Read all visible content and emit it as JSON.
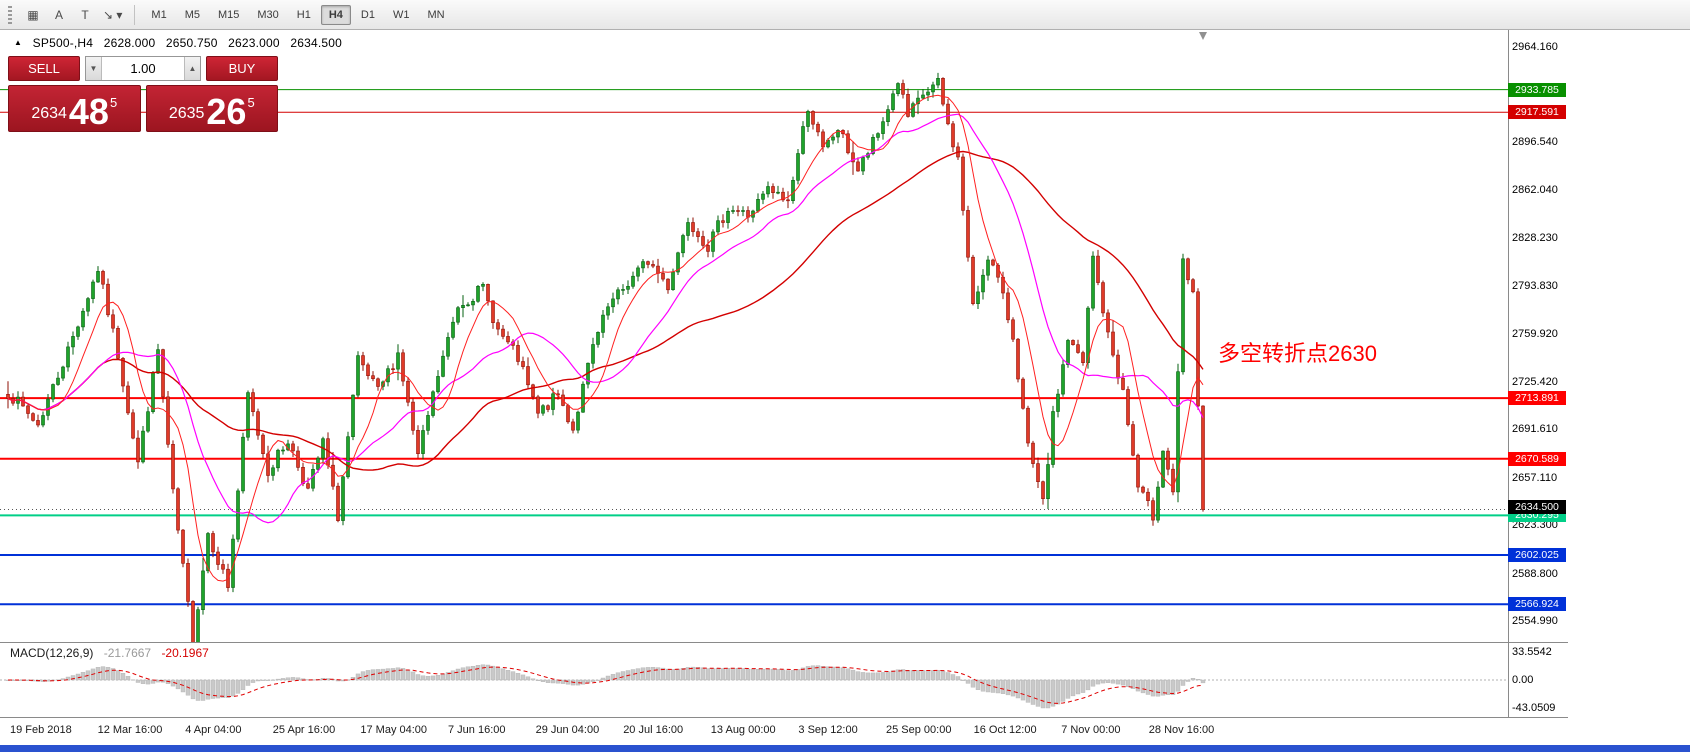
{
  "icons": {
    "chart_marker": "▲",
    "volume_down": "▼",
    "volume_up": "▲"
  },
  "toolbar": {
    "buttons": [
      {
        "name": "grid-icon",
        "glyph": "▦"
      },
      {
        "name": "cursor-a-icon",
        "glyph": "A"
      },
      {
        "name": "text-tool-icon",
        "glyph": "T"
      },
      {
        "name": "arrow-tool-icon",
        "glyph": "↘ ▾"
      }
    ],
    "timeframes": [
      {
        "label": "M1",
        "active": false
      },
      {
        "label": "M5",
        "active": false
      },
      {
        "label": "M15",
        "active": false
      },
      {
        "label": "M30",
        "active": false
      },
      {
        "label": "H1",
        "active": false
      },
      {
        "label": "H4",
        "active": true
      },
      {
        "label": "D1",
        "active": false
      },
      {
        "label": "W1",
        "active": false
      },
      {
        "label": "MN",
        "active": false
      }
    ]
  },
  "chart": {
    "header": {
      "symbol_period": "SP500-,H4",
      "open": "2628.000",
      "high": "2650.750",
      "low": "2623.000",
      "close": "2634.500"
    },
    "trade_panel": {
      "sell_label": "SELL",
      "buy_label": "BUY",
      "volume": "1.00",
      "bid": {
        "prefix": "2634",
        "big": "48",
        "sup": "5"
      },
      "ask": {
        "prefix": "2635",
        "big": "26",
        "sup": "5"
      }
    },
    "annotation": {
      "text": "多空转折点2630",
      "color": "#ff0000"
    },
    "price_axis": {
      "range": {
        "top": 2964.16,
        "bottom": 2554.99
      },
      "ticks": [
        {
          "label": "2964.160",
          "value": 2964.16
        },
        {
          "label": "2896.540",
          "value": 2896.54
        },
        {
          "label": "2862.040",
          "value": 2862.04
        },
        {
          "label": "2828.230",
          "value": 2828.23
        },
        {
          "label": "2793.830",
          "value": 2793.83
        },
        {
          "label": "2759.920",
          "value": 2759.92
        },
        {
          "label": "2725.420",
          "value": 2725.42
        },
        {
          "label": "2691.610",
          "value": 2691.61
        },
        {
          "label": "2657.110",
          "value": 2657.11
        },
        {
          "label": "2623.300",
          "value": 2623.3
        },
        {
          "label": "2588.800",
          "value": 2588.8
        },
        {
          "label": "2554.990",
          "value": 2554.99
        }
      ]
    },
    "levels": [
      {
        "label": "2933.785",
        "value": 2933.785,
        "color": "#089000",
        "width": 1
      },
      {
        "label": "2917.591",
        "value": 2917.591,
        "color": "#d40000",
        "width": 1
      },
      {
        "label": "2713.891",
        "value": 2713.891,
        "color": "#ff0000",
        "width": 2
      },
      {
        "label": "2670.589",
        "value": 2670.589,
        "color": "#ff0000",
        "width": 2
      },
      {
        "label": "2630.295",
        "value": 2630.295,
        "color": "#00cf87",
        "width": 2
      },
      {
        "label": "2602.025",
        "value": 2602.025,
        "color": "#0031d8",
        "width": 2
      },
      {
        "label": "2566.924",
        "value": 2566.924,
        "color": "#0031d8",
        "width": 2
      }
    ],
    "current_price": {
      "label": "2634.500",
      "value": 2634.5,
      "bg": "#000000"
    },
    "time_axis": [
      "19 Feb 2018",
      "12 Mar 16:00",
      "4 Apr 04:00",
      "25 Apr 16:00",
      "17 May 04:00",
      "7 Jun 16:00",
      "29 Jun 04:00",
      "20 Jul 16:00",
      "13 Aug 00:00",
      "3 Sep 12:00",
      "25 Sep 00:00",
      "16 Oct 12:00",
      "7 Nov 00:00",
      "28 Nov 16:00"
    ],
    "colors": {
      "up_fill": "#1fa32b",
      "up_stroke": "#056010",
      "down_fill": "#e03a28",
      "down_stroke": "#8f1005",
      "ma_fast": "#ff2020",
      "ma_mid": "#ff00ff",
      "ma_slow": "#d30000"
    },
    "candles": {
      "count": 240,
      "anchors": [
        [
          0,
          2718
        ],
        [
          6,
          2695
        ],
        [
          12,
          2748
        ],
        [
          18,
          2806
        ],
        [
          22,
          2745
        ],
        [
          26,
          2668
        ],
        [
          30,
          2748
        ],
        [
          33,
          2645
        ],
        [
          36,
          2566
        ],
        [
          37,
          2540
        ],
        [
          40,
          2618
        ],
        [
          44,
          2580
        ],
        [
          48,
          2716
        ],
        [
          52,
          2662
        ],
        [
          56,
          2684
        ],
        [
          60,
          2648
        ],
        [
          63,
          2682
        ],
        [
          66,
          2630
        ],
        [
          70,
          2740
        ],
        [
          74,
          2718
        ],
        [
          78,
          2746
        ],
        [
          82,
          2672
        ],
        [
          86,
          2730
        ],
        [
          90,
          2780
        ],
        [
          95,
          2792
        ],
        [
          98,
          2762
        ],
        [
          102,
          2742
        ],
        [
          106,
          2702
        ],
        [
          110,
          2716
        ],
        [
          113,
          2692
        ],
        [
          117,
          2750
        ],
        [
          120,
          2778
        ],
        [
          124,
          2796
        ],
        [
          128,
          2812
        ],
        [
          132,
          2794
        ],
        [
          136,
          2842
        ],
        [
          140,
          2822
        ],
        [
          144,
          2850
        ],
        [
          148,
          2844
        ],
        [
          152,
          2862
        ],
        [
          156,
          2854
        ],
        [
          160,
          2922
        ],
        [
          163,
          2890
        ],
        [
          166,
          2906
        ],
        [
          170,
          2876
        ],
        [
          174,
          2902
        ],
        [
          178,
          2940
        ],
        [
          180,
          2914
        ],
        [
          183,
          2930
        ],
        [
          186,
          2938
        ],
        [
          188,
          2908
        ],
        [
          190,
          2884
        ],
        [
          193,
          2778
        ],
        [
          196,
          2816
        ],
        [
          198,
          2798
        ],
        [
          201,
          2758
        ],
        [
          204,
          2678
        ],
        [
          207,
          2638
        ],
        [
          209,
          2700
        ],
        [
          212,
          2756
        ],
        [
          215,
          2738
        ],
        [
          217,
          2814
        ],
        [
          220,
          2758
        ],
        [
          223,
          2718
        ],
        [
          226,
          2650
        ],
        [
          229,
          2630
        ],
        [
          231,
          2678
        ],
        [
          233,
          2648
        ],
        [
          235,
          2810
        ],
        [
          237,
          2786
        ],
        [
          239,
          2634.5
        ]
      ]
    }
  },
  "macd": {
    "label": "MACD(12,26,9)",
    "main_value": "-21.7667",
    "signal_value": "-20.1967",
    "params": {
      "fast": 12,
      "slow": 26,
      "signal": 9
    },
    "axis": [
      {
        "label": "33.5542",
        "value": 33.5542
      },
      {
        "label": "0.00",
        "value": 0
      },
      {
        "label": "-43.0509",
        "value": -43.0509
      }
    ],
    "label_color": "#1a1a1a",
    "main_value_color": "#9a9a9a",
    "signal_value_color": "#d40000",
    "histogram_color": "#c9c9c9",
    "signal_color": "#e00000"
  },
  "window": {
    "bottom_bar_color": "#2a52cf"
  }
}
